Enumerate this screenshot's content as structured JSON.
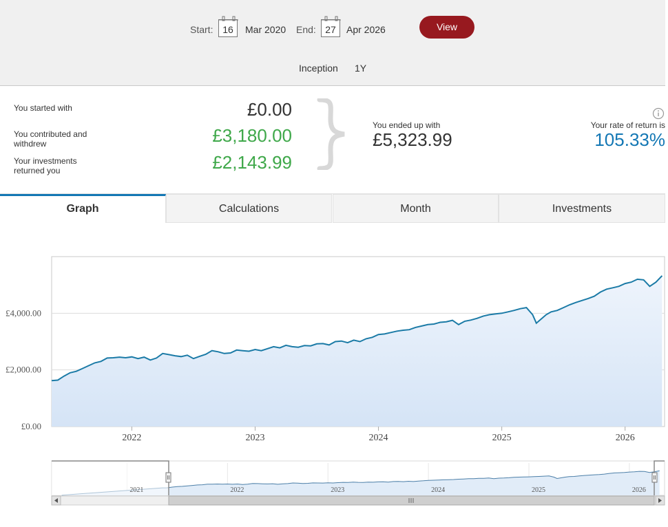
{
  "date_range": {
    "start_label": "Start:",
    "start_day": "16",
    "start_month": "Mar 2020",
    "end_label": "End:",
    "end_day": "27",
    "end_month": "Apr 2026",
    "view_button": "View"
  },
  "range_options": [
    "Inception",
    "1Y"
  ],
  "summary": {
    "started_label": "You started with",
    "started_value": "£0.00",
    "contributed_label_1": "You contributed and",
    "contributed_label_2": "withdrew",
    "contributed_value": "£3,180.00",
    "returned_label_1": "Your investments",
    "returned_label_2": "returned you",
    "returned_value": "£2,143.99",
    "ended_label": "You ended up with",
    "ended_value": "£5,323.99",
    "rate_label": "Your rate of return is",
    "rate_value": "105.33%",
    "info_icon": "info-icon"
  },
  "tabs": [
    "Graph",
    "Calculations",
    "Month",
    "Investments"
  ],
  "active_tab": "Graph",
  "colors": {
    "accent_red": "#97191f",
    "green": "#3fa84a",
    "teal": "#1377b4",
    "line": "#1a7aa6",
    "fill": "#dbe8f7"
  },
  "chart_data": {
    "type": "area",
    "title": "",
    "xlabel": "",
    "ylabel": "",
    "y_ticks": [
      "£0.00",
      "£2,000.00",
      "£4,000.00"
    ],
    "ylim": [
      0,
      6000
    ],
    "x_ticks": [
      "2022",
      "2023",
      "2024",
      "2025",
      "2026"
    ],
    "x_range": [
      2021.35,
      2026.32
    ],
    "grid": true,
    "series": [
      {
        "values": [
          [
            2021.35,
            1620
          ],
          [
            2021.4,
            1640
          ],
          [
            2021.45,
            1780
          ],
          [
            2021.5,
            1900
          ],
          [
            2021.55,
            1950
          ],
          [
            2021.6,
            2050
          ],
          [
            2021.65,
            2150
          ],
          [
            2021.7,
            2250
          ],
          [
            2021.75,
            2300
          ],
          [
            2021.8,
            2420
          ],
          [
            2021.85,
            2430
          ],
          [
            2021.9,
            2450
          ],
          [
            2021.95,
            2430
          ],
          [
            2022.0,
            2460
          ],
          [
            2022.05,
            2400
          ],
          [
            2022.1,
            2450
          ],
          [
            2022.15,
            2350
          ],
          [
            2022.2,
            2420
          ],
          [
            2022.25,
            2580
          ],
          [
            2022.3,
            2540
          ],
          [
            2022.35,
            2500
          ],
          [
            2022.4,
            2470
          ],
          [
            2022.45,
            2520
          ],
          [
            2022.5,
            2400
          ],
          [
            2022.55,
            2480
          ],
          [
            2022.6,
            2550
          ],
          [
            2022.65,
            2680
          ],
          [
            2022.7,
            2640
          ],
          [
            2022.75,
            2580
          ],
          [
            2022.8,
            2600
          ],
          [
            2022.85,
            2700
          ],
          [
            2022.9,
            2680
          ],
          [
            2022.95,
            2660
          ],
          [
            2023.0,
            2720
          ],
          [
            2023.05,
            2680
          ],
          [
            2023.1,
            2750
          ],
          [
            2023.15,
            2820
          ],
          [
            2023.2,
            2780
          ],
          [
            2023.25,
            2870
          ],
          [
            2023.3,
            2820
          ],
          [
            2023.35,
            2800
          ],
          [
            2023.4,
            2860
          ],
          [
            2023.45,
            2850
          ],
          [
            2023.5,
            2920
          ],
          [
            2023.55,
            2930
          ],
          [
            2023.6,
            2880
          ],
          [
            2023.65,
            3000
          ],
          [
            2023.7,
            3020
          ],
          [
            2023.75,
            2960
          ],
          [
            2023.8,
            3050
          ],
          [
            2023.85,
            3000
          ],
          [
            2023.9,
            3100
          ],
          [
            2023.95,
            3150
          ],
          [
            2024.0,
            3250
          ],
          [
            2024.05,
            3270
          ],
          [
            2024.1,
            3320
          ],
          [
            2024.15,
            3370
          ],
          [
            2024.2,
            3400
          ],
          [
            2024.25,
            3420
          ],
          [
            2024.3,
            3500
          ],
          [
            2024.35,
            3550
          ],
          [
            2024.4,
            3600
          ],
          [
            2024.45,
            3620
          ],
          [
            2024.5,
            3680
          ],
          [
            2024.55,
            3700
          ],
          [
            2024.6,
            3750
          ],
          [
            2024.65,
            3600
          ],
          [
            2024.7,
            3720
          ],
          [
            2024.75,
            3760
          ],
          [
            2024.8,
            3820
          ],
          [
            2024.85,
            3900
          ],
          [
            2024.9,
            3950
          ],
          [
            2024.95,
            3980
          ],
          [
            2025.0,
            4000
          ],
          [
            2025.05,
            4050
          ],
          [
            2025.1,
            4100
          ],
          [
            2025.15,
            4160
          ],
          [
            2025.2,
            4200
          ],
          [
            2025.25,
            3950
          ],
          [
            2025.28,
            3650
          ],
          [
            2025.32,
            3800
          ],
          [
            2025.36,
            3950
          ],
          [
            2025.4,
            4050
          ],
          [
            2025.45,
            4100
          ],
          [
            2025.5,
            4200
          ],
          [
            2025.55,
            4300
          ],
          [
            2025.6,
            4380
          ],
          [
            2025.65,
            4450
          ],
          [
            2025.7,
            4520
          ],
          [
            2025.75,
            4600
          ],
          [
            2025.8,
            4750
          ],
          [
            2025.85,
            4850
          ],
          [
            2025.9,
            4900
          ],
          [
            2025.95,
            4950
          ],
          [
            2026.0,
            5050
          ],
          [
            2026.05,
            5100
          ],
          [
            2026.1,
            5200
          ],
          [
            2026.15,
            5180
          ],
          [
            2026.2,
            4950
          ],
          [
            2026.25,
            5100
          ],
          [
            2026.3,
            5323.99
          ]
        ]
      }
    ]
  },
  "navigator": {
    "x_ticks": [
      "2021",
      "2022",
      "2023",
      "2024",
      "2025",
      "2026"
    ]
  }
}
